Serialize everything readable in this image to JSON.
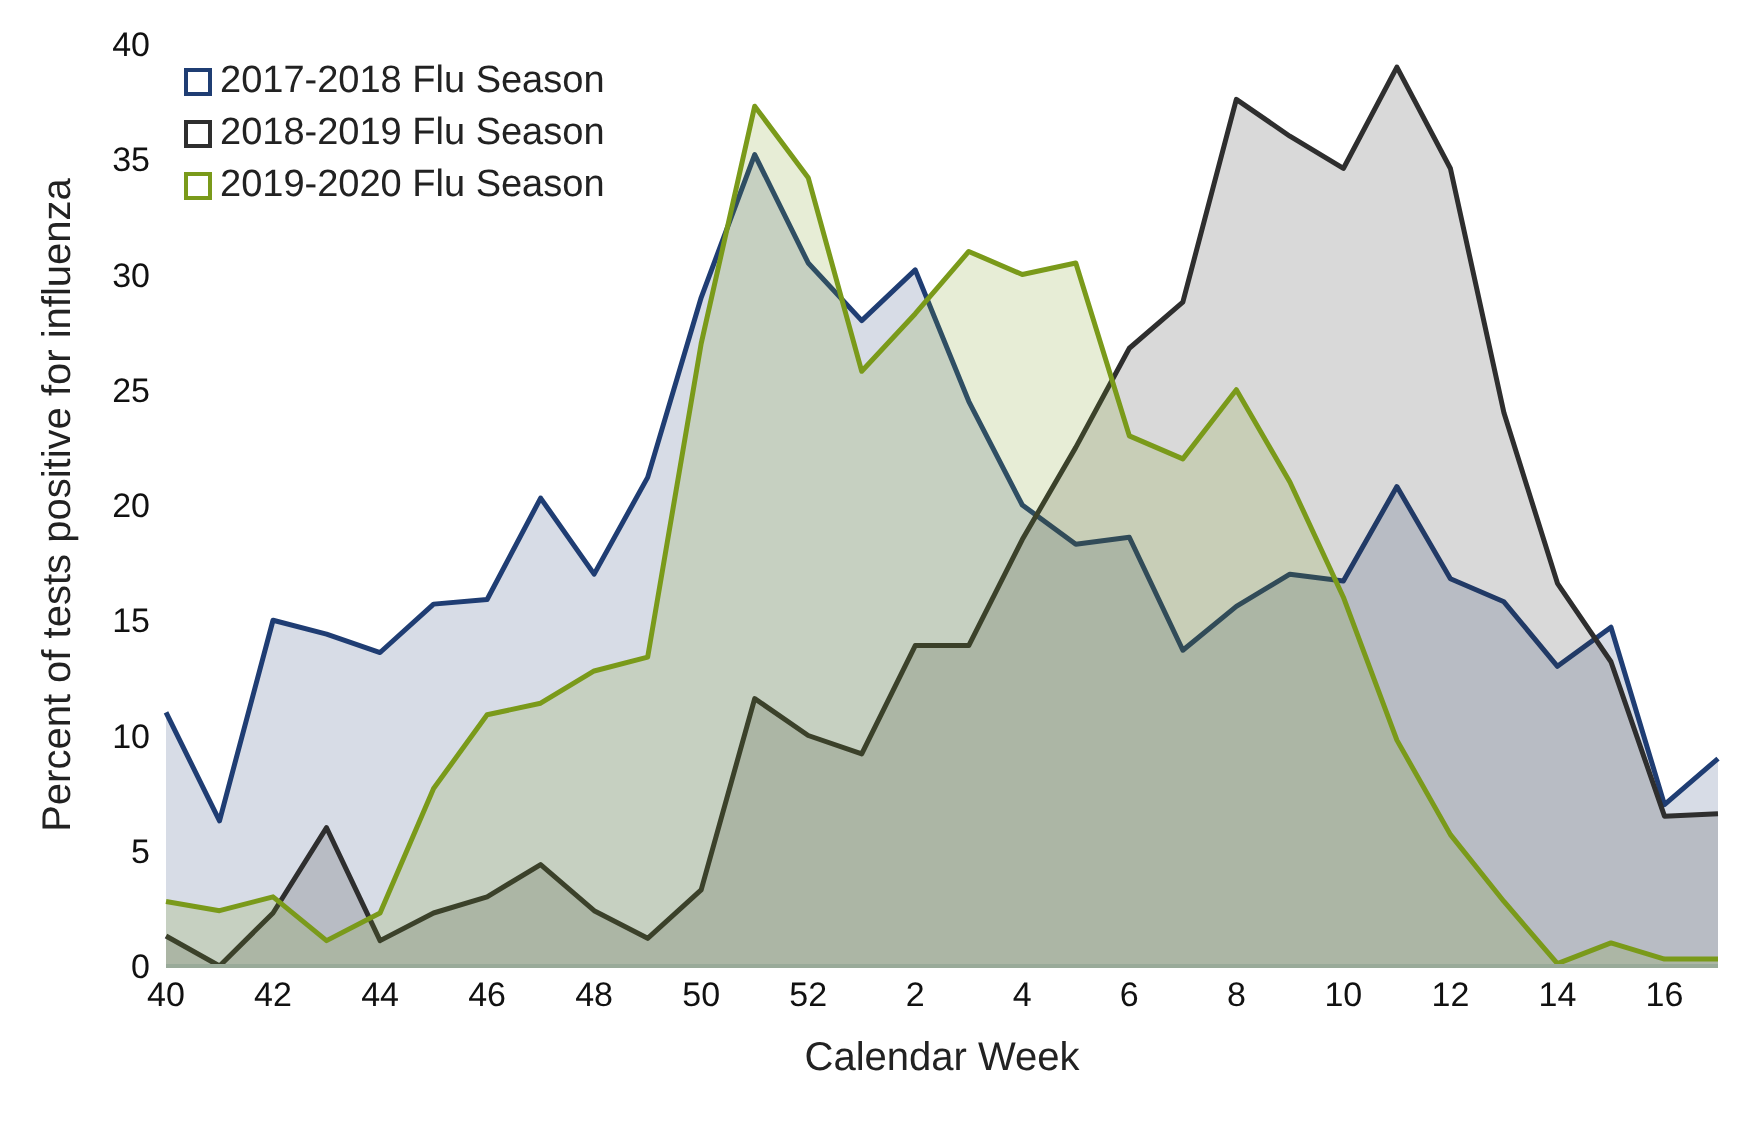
{
  "chart_data": {
    "type": "area",
    "xlabel": "Calendar Week",
    "ylabel": "Percent of tests positive for influenza",
    "categories": [
      "40",
      null,
      "42",
      null,
      "44",
      null,
      "46",
      null,
      "48",
      null,
      "50",
      null,
      "52",
      null,
      "2",
      null,
      "4",
      null,
      "6",
      null,
      "8",
      null,
      "10",
      null,
      "12",
      null,
      "14",
      null,
      "16",
      null
    ],
    "series": [
      {
        "name": "2017-2018 Flu Season",
        "color": "#1f3d73",
        "values": [
          11,
          6.3,
          15,
          14.4,
          13.6,
          15.7,
          15.9,
          20.3,
          17,
          21.2,
          29,
          35.2,
          30.5,
          28,
          30.2,
          24.5,
          20,
          18.3,
          18.6,
          13.7,
          15.6,
          17,
          16.7,
          20.8,
          16.8,
          15.8,
          13,
          14.7,
          7,
          9
        ]
      },
      {
        "name": "2018-2019 Flu Season",
        "color": "#2e2e2e",
        "values": [
          1.3,
          0,
          2.3,
          6,
          1.1,
          2.3,
          3,
          4.4,
          2.4,
          1.2,
          3.3,
          11.6,
          10,
          9.2,
          13.9,
          13.9,
          18.5,
          22.5,
          26.8,
          28.8,
          37.6,
          36,
          34.6,
          39,
          34.6,
          24,
          16.6,
          13.2,
          6.5,
          6.6
        ]
      },
      {
        "name": "2019-2020 Flu Season",
        "color": "#7a9a1a",
        "values": [
          2.8,
          2.4,
          3,
          1.1,
          2.3,
          7.7,
          10.9,
          11.4,
          12.8,
          13.4,
          27,
          37.3,
          34.2,
          25.8,
          28.3,
          31,
          30,
          30.5,
          23,
          22,
          25,
          21,
          16,
          9.8,
          5.7,
          2.8,
          0.1,
          1,
          0.3,
          0.3
        ]
      }
    ],
    "ylim": [
      0,
      40
    ],
    "yticks": [
      0,
      5,
      10,
      15,
      20,
      25,
      30,
      35,
      40
    ],
    "legend": "top left"
  }
}
